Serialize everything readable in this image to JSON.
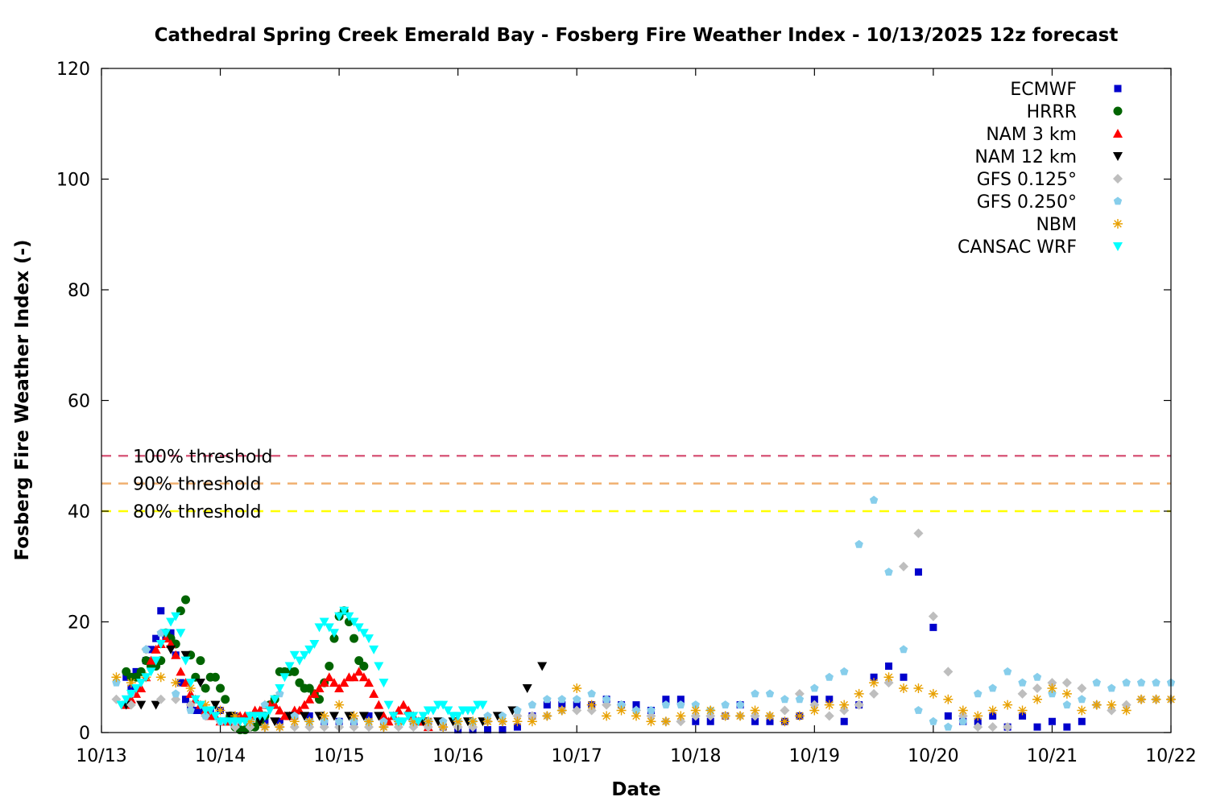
{
  "chart_data": {
    "type": "scatter",
    "title": "Cathedral Spring Creek Emerald Bay - Fosberg Fire Weather Index - 10/13/2025 12z forecast",
    "xlabel": "Date",
    "ylabel": "Fosberg Fire Weather Index (-)",
    "x_unit": "hours since 10/13 00Z",
    "xlim": [
      0,
      216
    ],
    "ylim": [
      0,
      120
    ],
    "x_ticks": [
      {
        "value": 0,
        "label": "10/13"
      },
      {
        "value": 24,
        "label": "10/14"
      },
      {
        "value": 48,
        "label": "10/15"
      },
      {
        "value": 72,
        "label": "10/16"
      },
      {
        "value": 96,
        "label": "10/17"
      },
      {
        "value": 120,
        "label": "10/18"
      },
      {
        "value": 144,
        "label": "10/19"
      },
      {
        "value": 168,
        "label": "10/20"
      },
      {
        "value": 192,
        "label": "10/21"
      },
      {
        "value": 216,
        "label": "10/22"
      }
    ],
    "y_ticks": [
      0,
      20,
      40,
      60,
      80,
      100,
      120
    ],
    "grid": false,
    "legend_position": "top-right",
    "thresholds": [
      {
        "label": "100% threshold",
        "value": 50,
        "color": "#d95f7f"
      },
      {
        "label": "90% threshold",
        "value": 45,
        "color": "#f0b070"
      },
      {
        "label": "80% threshold",
        "value": 40,
        "color": "#ffff00"
      }
    ],
    "series": [
      {
        "name": "ECMWF",
        "marker": "square",
        "color": "#0000cc",
        "x": [
          5,
          6,
          7,
          9,
          10,
          11,
          12,
          13,
          14,
          15,
          16,
          17,
          18,
          19,
          20,
          21,
          22,
          24,
          27,
          30,
          33,
          36,
          39,
          42,
          45,
          48,
          51,
          54,
          57,
          60,
          63,
          66,
          69,
          72,
          75,
          78,
          81,
          84,
          87,
          90,
          93,
          96,
          99,
          102,
          105,
          108,
          111,
          114,
          117,
          120,
          123,
          126,
          129,
          132,
          135,
          138,
          141,
          144,
          147,
          150,
          153,
          156,
          159,
          162,
          165,
          168,
          171,
          174,
          177,
          180,
          183,
          186,
          189,
          192,
          195,
          198
        ],
        "y": [
          10,
          8,
          11,
          13,
          15,
          17,
          22,
          17,
          18,
          14,
          9,
          6,
          5,
          4,
          4,
          4,
          4,
          4,
          3,
          2,
          2,
          2,
          3,
          3,
          2,
          2,
          2,
          3,
          2,
          2,
          2,
          2,
          1,
          0.5,
          0.5,
          0.5,
          0.5,
          1,
          3,
          5,
          5,
          5,
          5,
          6,
          5,
          5,
          4,
          6,
          6,
          2,
          2,
          3,
          5,
          2,
          2,
          2,
          3,
          6,
          6,
          2,
          5,
          10,
          12,
          10,
          29,
          19,
          3,
          2,
          2,
          3,
          1,
          3,
          1,
          2,
          1,
          2
        ]
      },
      {
        "name": "HRRR",
        "marker": "circle",
        "color": "#006400",
        "x": [
          5,
          6,
          7,
          8,
          9,
          10,
          11,
          12,
          13,
          14,
          15,
          16,
          17,
          18,
          19,
          20,
          21,
          22,
          23,
          24,
          25,
          26,
          27,
          28,
          29,
          30,
          31,
          32,
          33,
          34,
          35,
          36,
          37,
          38,
          39,
          40,
          41,
          42,
          43,
          44,
          45,
          46,
          47,
          48,
          49,
          50,
          51,
          52,
          53
        ],
        "y": [
          11,
          10,
          10,
          11,
          13,
          12,
          12,
          13,
          18,
          17,
          16,
          22,
          24,
          14,
          10,
          13,
          8,
          10,
          10,
          8,
          6,
          3,
          1,
          0.5,
          0.5,
          1,
          1,
          2,
          3,
          5,
          6,
          11,
          11,
          11,
          11,
          9,
          8,
          8,
          7,
          6,
          9,
          12,
          17,
          21,
          22,
          20,
          17,
          13,
          12
        ]
      },
      {
        "name": "NAM 3 km",
        "marker": "triangle-up",
        "color": "#ff0000",
        "x": [
          5,
          6,
          7,
          8,
          9,
          10,
          11,
          12,
          13,
          14,
          15,
          16,
          17,
          18,
          19,
          20,
          21,
          22,
          23,
          24,
          25,
          26,
          27,
          28,
          29,
          30,
          31,
          32,
          33,
          34,
          35,
          36,
          37,
          38,
          39,
          40,
          41,
          42,
          43,
          44,
          45,
          46,
          47,
          48,
          49,
          50,
          51,
          52,
          53,
          54,
          55,
          56,
          57,
          58,
          59,
          60,
          61,
          62,
          63,
          64,
          65,
          66
        ],
        "y": [
          5,
          6,
          7,
          8,
          10,
          13,
          15,
          16,
          17,
          16,
          14,
          11,
          9,
          7,
          6,
          5,
          4,
          3,
          3,
          2,
          2,
          2,
          2,
          3,
          3,
          3,
          4,
          4,
          5,
          5,
          5,
          4,
          3,
          3,
          4,
          4,
          5,
          6,
          7,
          8,
          9,
          10,
          9,
          8,
          9,
          10,
          10,
          11,
          10,
          9,
          7,
          5,
          3,
          2,
          3,
          4,
          5,
          4,
          3,
          2,
          2,
          1
        ]
      },
      {
        "name": "NAM 12 km",
        "marker": "triangle-down",
        "color": "#000000",
        "x": [
          5,
          8,
          11,
          14,
          17,
          20,
          23,
          26,
          29,
          32,
          35,
          38,
          41,
          44,
          47,
          50,
          53,
          56,
          59,
          62,
          65,
          68,
          71,
          74,
          77,
          80,
          83,
          86,
          89
        ],
        "y": [
          5,
          5,
          5,
          15,
          14,
          9,
          5,
          3,
          2,
          2,
          2,
          3,
          3,
          3,
          3,
          3,
          3,
          3,
          3,
          3,
          2,
          2,
          2,
          2,
          2,
          3,
          4,
          8,
          12
        ]
      },
      {
        "name": "GFS 0.125°",
        "marker": "diamond",
        "color": "#bebebe",
        "x": [
          3,
          6,
          9,
          12,
          15,
          18,
          21,
          24,
          27,
          30,
          33,
          36,
          39,
          42,
          45,
          48,
          51,
          54,
          57,
          60,
          63,
          66,
          69,
          72,
          75,
          78,
          81,
          84,
          87,
          90,
          93,
          96,
          99,
          102,
          105,
          108,
          111,
          114,
          117,
          120,
          123,
          126,
          129,
          132,
          135,
          138,
          141,
          144,
          147,
          150,
          153,
          156,
          159,
          162,
          165,
          168,
          171,
          174,
          177,
          180,
          183,
          186,
          189,
          192,
          195,
          198,
          201,
          204,
          207,
          210,
          213,
          216
        ],
        "y": [
          6,
          5,
          15,
          6,
          6,
          5,
          3,
          2,
          1,
          1,
          1,
          1,
          1,
          1,
          1,
          1,
          1,
          1,
          1,
          1,
          1,
          1,
          1,
          1,
          1,
          2,
          2,
          3,
          3,
          3,
          4,
          4,
          4,
          5,
          5,
          4,
          3,
          2,
          2,
          3,
          3,
          3,
          3,
          3,
          3,
          4,
          7,
          5,
          3,
          4,
          5,
          7,
          9,
          30,
          36,
          21,
          11,
          3,
          1,
          1,
          1,
          7,
          8,
          9,
          9,
          8,
          5,
          4,
          5,
          6,
          6,
          6
        ]
      },
      {
        "name": "GFS 0.250°",
        "marker": "pentagon",
        "color": "#87ceeb",
        "x": [
          3,
          6,
          9,
          12,
          15,
          18,
          21,
          24,
          27,
          30,
          33,
          36,
          39,
          42,
          45,
          48,
          51,
          54,
          57,
          60,
          63,
          66,
          69,
          72,
          75,
          78,
          81,
          84,
          87,
          90,
          93,
          96,
          99,
          102,
          105,
          108,
          111,
          114,
          117,
          120,
          123,
          126,
          129,
          132,
          135,
          138,
          141,
          144,
          147,
          150,
          153,
          156,
          159,
          162,
          165,
          168,
          171,
          174,
          177,
          180,
          183,
          186,
          189,
          192,
          195,
          198,
          201,
          204,
          207,
          210,
          213,
          216
        ],
        "y": [
          9,
          7,
          15,
          18,
          7,
          4,
          3,
          2,
          2,
          2,
          5,
          7,
          3,
          2,
          2,
          2,
          2,
          2,
          2,
          2,
          2,
          2,
          2,
          2,
          2,
          3,
          3,
          4,
          5,
          6,
          6,
          6,
          7,
          6,
          5,
          4,
          4,
          5,
          5,
          5,
          4,
          5,
          5,
          7,
          7,
          6,
          6,
          8,
          10,
          11,
          34,
          42,
          29,
          15,
          4,
          2,
          1,
          2,
          7,
          8,
          11,
          9,
          10,
          7,
          5,
          6,
          9,
          8,
          9,
          9,
          9,
          9
        ]
      },
      {
        "name": "NBM",
        "marker": "asterisk",
        "color": "#e8a000",
        "x": [
          3,
          6,
          9,
          12,
          15,
          18,
          21,
          24,
          27,
          30,
          33,
          36,
          39,
          42,
          45,
          48,
          51,
          54,
          57,
          60,
          63,
          66,
          69,
          72,
          75,
          78,
          81,
          84,
          87,
          90,
          93,
          96,
          99,
          102,
          105,
          108,
          111,
          114,
          117,
          120,
          123,
          126,
          129,
          132,
          135,
          138,
          141,
          144,
          147,
          150,
          153,
          156,
          159,
          162,
          165,
          168,
          171,
          174,
          177,
          180,
          183,
          186,
          189,
          192,
          195,
          198,
          201,
          204,
          207,
          210,
          213,
          216
        ],
        "y": [
          10,
          9,
          10,
          10,
          9,
          8,
          5,
          4,
          3,
          2,
          1,
          1,
          2,
          2,
          3,
          5,
          3,
          2,
          1,
          2,
          2,
          2,
          1,
          2,
          2,
          2,
          2,
          2,
          2,
          3,
          4,
          8,
          5,
          3,
          4,
          3,
          2,
          2,
          3,
          4,
          4,
          3,
          3,
          4,
          3,
          2,
          3,
          4,
          5,
          5,
          7,
          9,
          10,
          8,
          8,
          7,
          6,
          4,
          3,
          4,
          5,
          4,
          6,
          8,
          7,
          4,
          5,
          5,
          4,
          6,
          6,
          6
        ]
      },
      {
        "name": "CANSAC WRF",
        "marker": "triangle-down",
        "color": "#00ffff",
        "x": [
          4,
          5,
          6,
          7,
          8,
          9,
          10,
          11,
          12,
          13,
          14,
          15,
          16,
          17,
          18,
          19,
          20,
          21,
          22,
          23,
          24,
          25,
          26,
          27,
          28,
          29,
          30,
          31,
          32,
          33,
          34,
          35,
          36,
          37,
          38,
          39,
          40,
          41,
          42,
          43,
          44,
          45,
          46,
          47,
          48,
          49,
          50,
          51,
          52,
          53,
          54,
          55,
          56,
          57,
          58,
          59,
          60,
          61,
          62,
          63,
          64,
          65,
          66,
          67,
          68,
          69,
          70,
          71,
          72,
          73,
          74,
          75,
          76,
          77
        ],
        "y": [
          5,
          6,
          7,
          8,
          9,
          10,
          11,
          13,
          16,
          18,
          20,
          21,
          18,
          13,
          9,
          6,
          5,
          4,
          4,
          3,
          2,
          2,
          2,
          2,
          2,
          2,
          3,
          3,
          3,
          3,
          4,
          6,
          8,
          10,
          12,
          14,
          13,
          14,
          15,
          16,
          19,
          20,
          19,
          18,
          21,
          22,
          21,
          20,
          19,
          18,
          17,
          15,
          12,
          9,
          5,
          3,
          2,
          2,
          3,
          3,
          2,
          3,
          4,
          4,
          5,
          5,
          4,
          3,
          3,
          4,
          4,
          4,
          5,
          5
        ]
      }
    ]
  }
}
